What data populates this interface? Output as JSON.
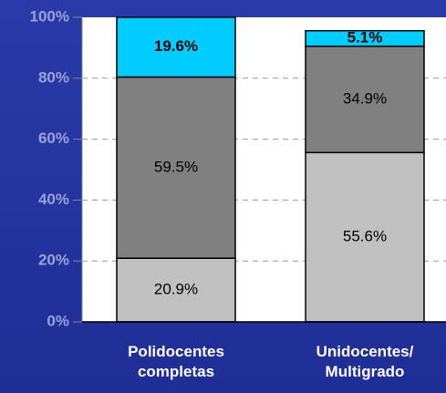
{
  "chart_data": {
    "type": "stacked_bar",
    "categories": [
      "Polidocentes completas",
      "Unidocentes/ Multigrado"
    ],
    "series": [
      {
        "color": "#c0c0c0",
        "values": [
          20.9,
          55.6
        ],
        "value_labels": [
          "20.9%",
          "55.6%"
        ]
      },
      {
        "color": "#808080",
        "values": [
          59.5,
          34.9
        ],
        "value_labels": [
          "59.5%",
          "34.9%"
        ]
      },
      {
        "color": "#00ccff",
        "values": [
          19.6,
          5.1
        ],
        "value_labels": [
          "19.6%",
          "5.1%"
        ],
        "bold_labels": true
      }
    ],
    "ylim": [
      0,
      100
    ],
    "yticks": [
      {
        "value": 0,
        "label": "0%"
      },
      {
        "value": 20,
        "label": "20%"
      },
      {
        "value": 40,
        "label": "40%"
      },
      {
        "value": 60,
        "label": "60%"
      },
      {
        "value": 80,
        "label": "80%"
      },
      {
        "value": 100,
        "label": "100%"
      }
    ],
    "grid": true
  }
}
